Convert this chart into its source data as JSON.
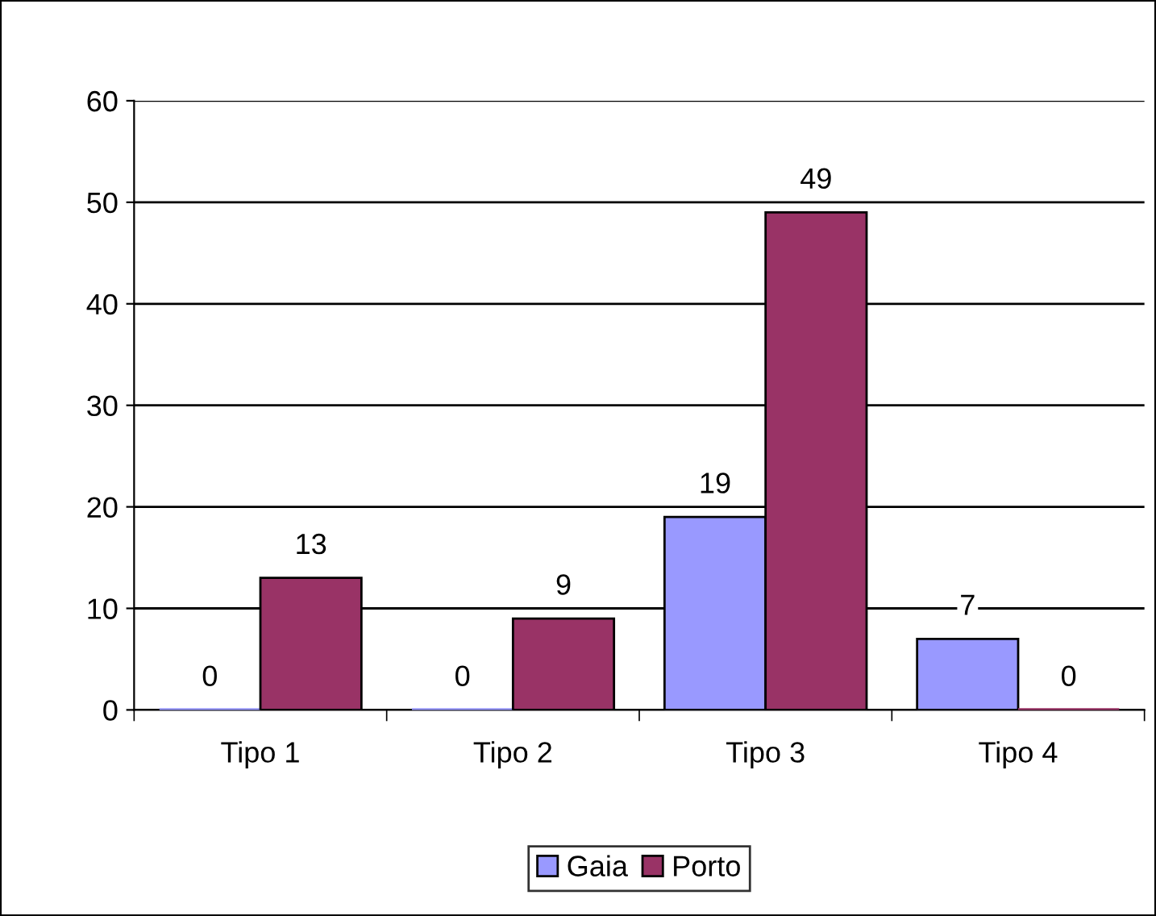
{
  "chart_data": {
    "type": "bar",
    "categories": [
      "Tipo 1",
      "Tipo 2",
      "Tipo 3",
      "Tipo 4"
    ],
    "series": [
      {
        "name": "Gaia",
        "color": "#9999ff",
        "values": [
          0,
          0,
          19,
          7
        ]
      },
      {
        "name": "Porto",
        "color": "#993366",
        "values": [
          13,
          9,
          49,
          0
        ]
      }
    ],
    "ylim": [
      0,
      60
    ],
    "yticks": [
      0,
      10,
      20,
      30,
      40,
      50,
      60
    ],
    "grid": "y",
    "legend": "bottom",
    "data_labels": true
  }
}
